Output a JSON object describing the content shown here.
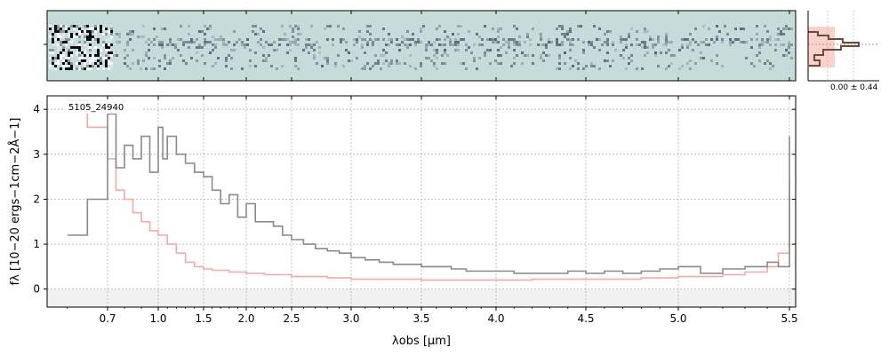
{
  "chart_data": {
    "type": "line",
    "label": "5105_24940",
    "xlabel": "λobs [μm]",
    "ylabel": "fλ [10−20 ergs−1cm−2Å−1]",
    "xscale": "nonlinear (approx. sqrt-like wavelength scale)",
    "xlim": [
      0.55,
      5.52
    ],
    "ylim": [
      -0.4,
      4.3
    ],
    "x_ticks": [
      0.7,
      1.0,
      1.5,
      2.0,
      2.5,
      3.0,
      3.5,
      4.0,
      4.5,
      5.0,
      5.5
    ],
    "x_tick_labels": [
      "0.7",
      "1.0",
      "1.5",
      "2.0",
      "2.5",
      "3.0",
      "3.5",
      "4.0",
      "4.5",
      "5.0",
      "5.5"
    ],
    "y_ticks": [
      0,
      1,
      2,
      3,
      4
    ],
    "y_tick_labels": [
      "0",
      "1",
      "2",
      "3",
      "4"
    ],
    "grid": true,
    "colors": {
      "spectrum": "#8a8a8a",
      "uncertainty": "#f4a9a8",
      "twod_background": "#c6dcda",
      "histogram": "#6b4a3a",
      "histogram_fill": "#f9d2cc"
    },
    "series": [
      {
        "role": "spectrum",
        "x": [
          0.6,
          0.65,
          0.7,
          0.75,
          0.8,
          0.85,
          0.9,
          0.95,
          1.0,
          1.05,
          1.1,
          1.2,
          1.3,
          1.4,
          1.5,
          1.6,
          1.7,
          1.8,
          1.9,
          2.0,
          2.1,
          2.2,
          2.3,
          2.4,
          2.5,
          2.6,
          2.7,
          2.8,
          2.9,
          3.0,
          3.1,
          3.2,
          3.3,
          3.4,
          3.5,
          3.6,
          3.7,
          3.8,
          3.9,
          4.0,
          4.1,
          4.2,
          4.3,
          4.4,
          4.5,
          4.6,
          4.7,
          4.8,
          4.9,
          5.0,
          5.1,
          5.2,
          5.3,
          5.4,
          5.45,
          5.5
        ],
        "y": [
          1.2,
          2.0,
          3.9,
          2.7,
          3.2,
          2.9,
          3.4,
          2.6,
          3.6,
          2.9,
          3.4,
          3.0,
          2.8,
          2.6,
          2.5,
          2.2,
          1.9,
          2.1,
          1.6,
          1.9,
          1.5,
          1.5,
          1.4,
          1.2,
          1.1,
          1.0,
          0.9,
          0.85,
          0.8,
          0.7,
          0.65,
          0.6,
          0.55,
          0.55,
          0.5,
          0.5,
          0.45,
          0.4,
          0.4,
          0.4,
          0.35,
          0.35,
          0.35,
          0.4,
          0.35,
          0.4,
          0.35,
          0.4,
          0.45,
          0.5,
          0.35,
          0.45,
          0.5,
          0.6,
          0.5,
          3.4
        ]
      },
      {
        "role": "uncertainty",
        "x": [
          0.6,
          0.65,
          0.7,
          0.75,
          0.8,
          0.85,
          0.9,
          0.95,
          1.0,
          1.1,
          1.2,
          1.3,
          1.4,
          1.5,
          1.6,
          1.8,
          2.0,
          2.2,
          2.5,
          2.8,
          3.0,
          3.2,
          3.5,
          3.8,
          4.0,
          4.2,
          4.5,
          4.8,
          5.0,
          5.2,
          5.3,
          5.4,
          5.45,
          5.5
        ],
        "y": [
          4.2,
          3.6,
          2.9,
          2.2,
          2.0,
          1.7,
          1.5,
          1.3,
          1.2,
          1.0,
          0.8,
          0.6,
          0.5,
          0.45,
          0.42,
          0.38,
          0.35,
          0.32,
          0.28,
          0.25,
          0.22,
          0.22,
          0.2,
          0.2,
          0.2,
          0.22,
          0.22,
          0.25,
          0.28,
          0.32,
          0.38,
          0.5,
          0.8,
          2.4
        ]
      }
    ],
    "twod_panel": {
      "colormap": "bone_r",
      "histogram_label": "0.00 ± 0.44"
    }
  }
}
